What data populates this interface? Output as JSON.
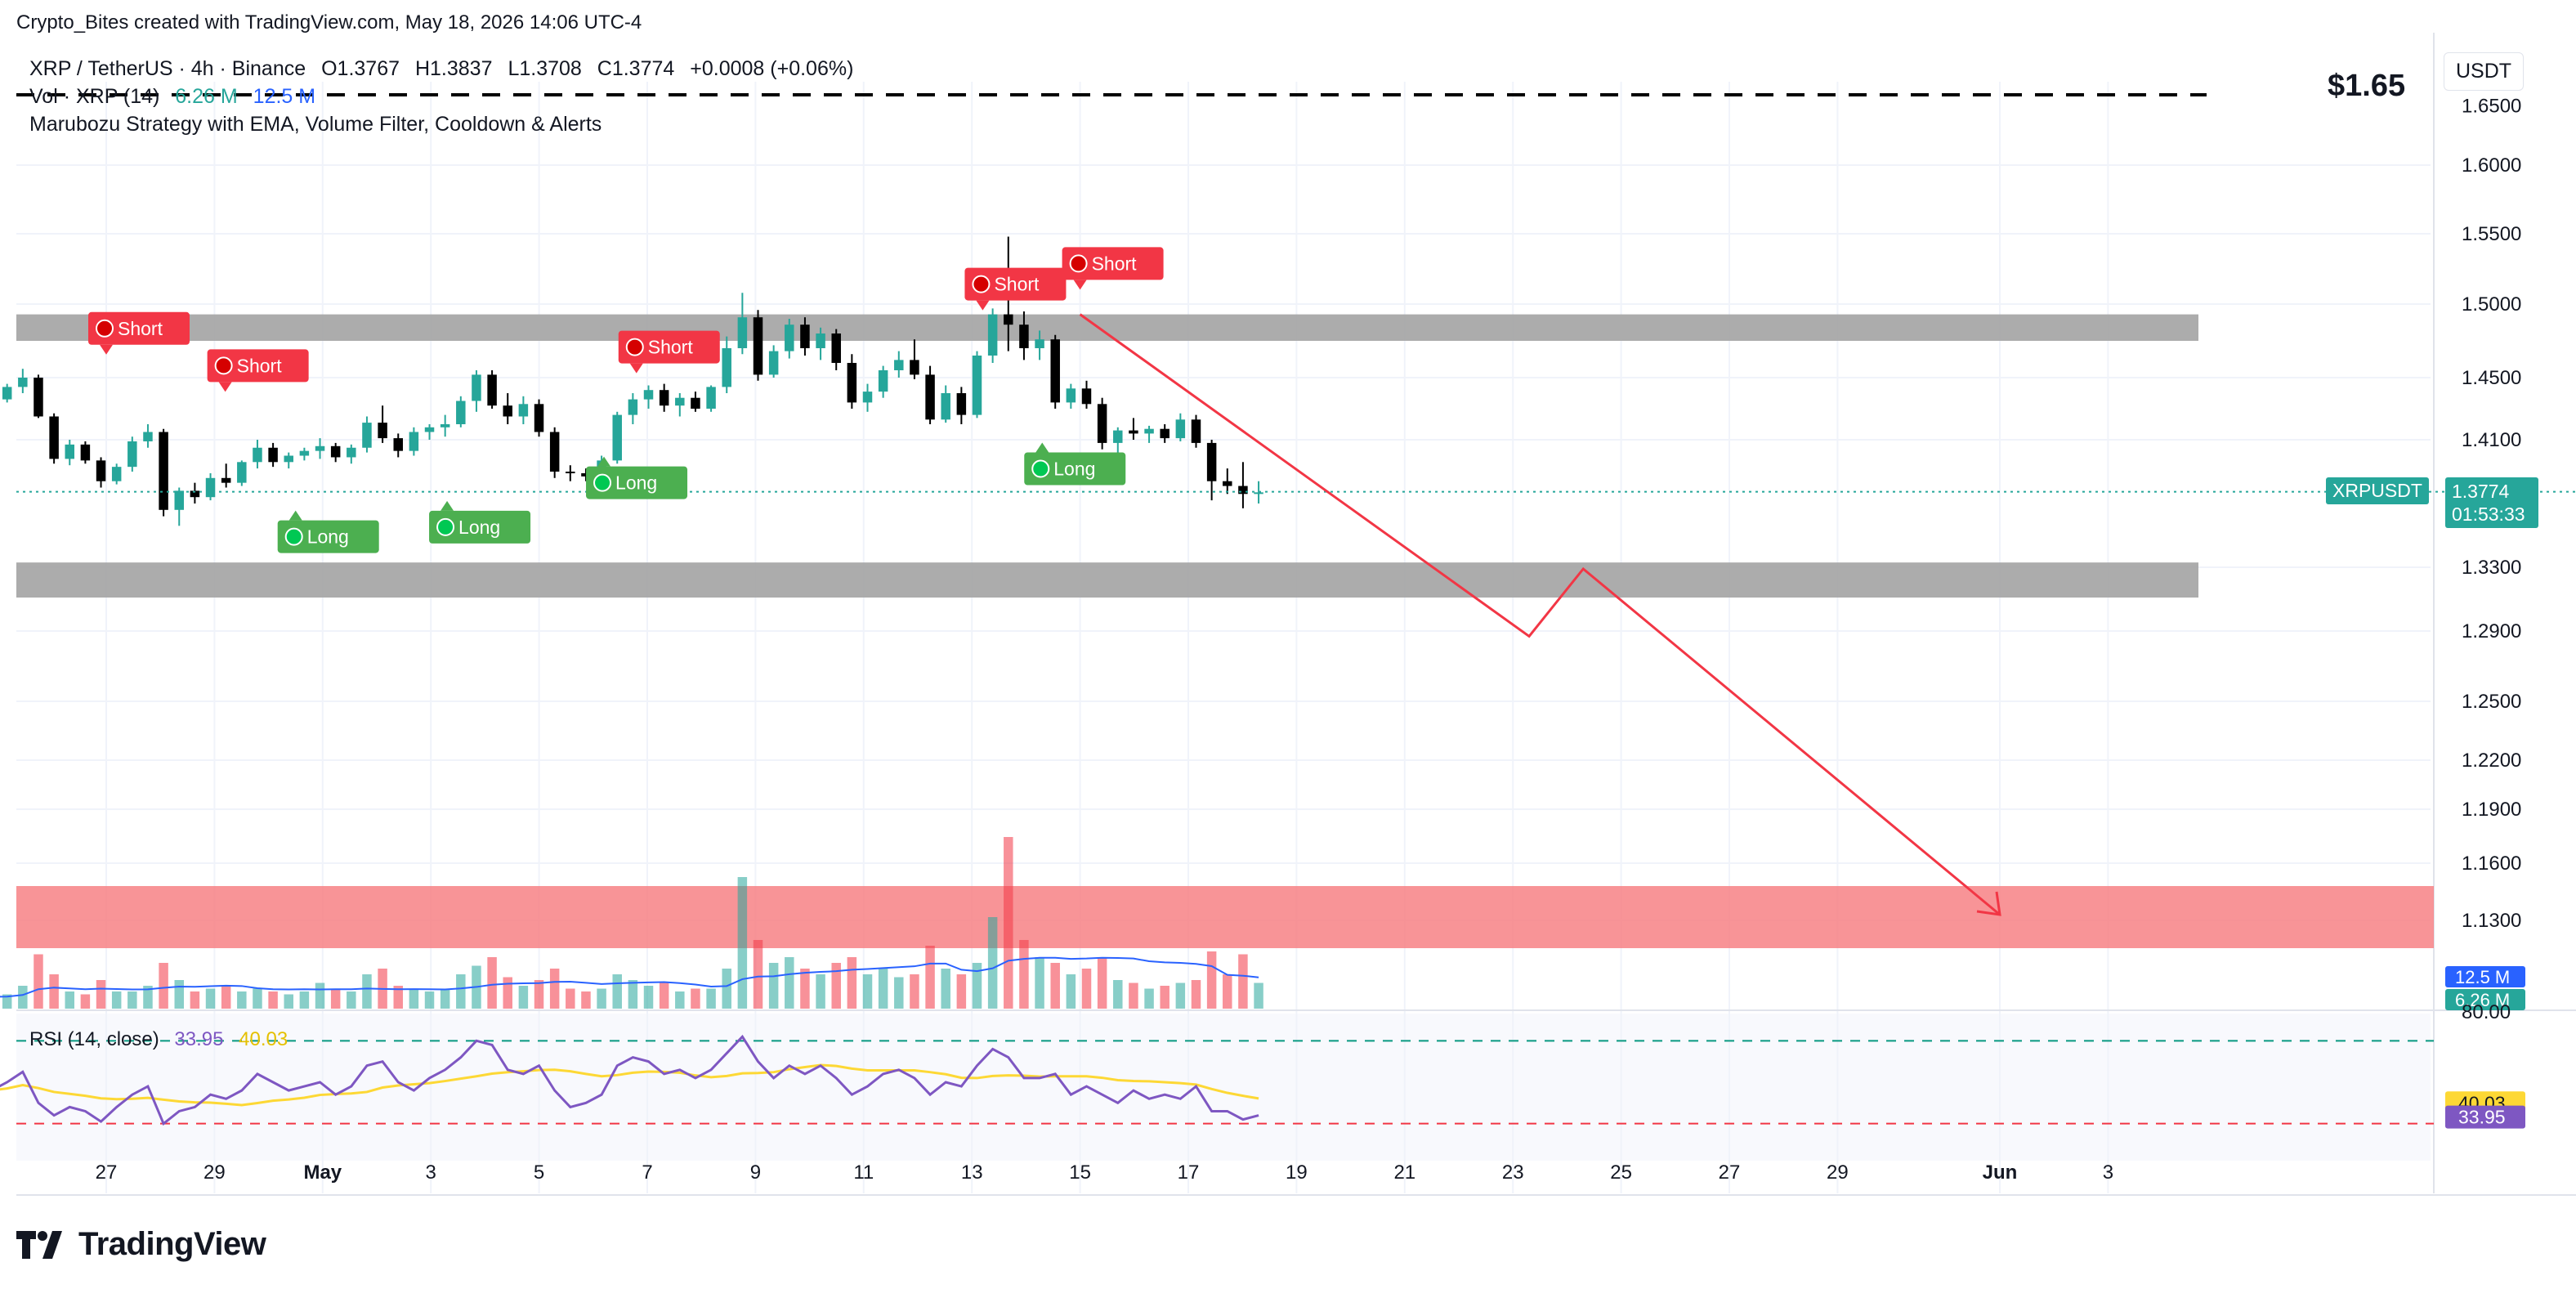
{
  "header": {
    "author_line": "Crypto_Bites created with TradingView.com, May 18, 2026 14:06 UTC-4",
    "symbol_line": "XRP / TetherUS · 4h · Binance",
    "ohlc": {
      "o": "O1.3767",
      "h": "H1.3837",
      "l": "L1.3708",
      "c": "C1.3774",
      "chg": "+0.0008 (+0.06%)"
    },
    "vol_label": "Vol · XRP (14)",
    "vol_value_1": "6.26 M",
    "vol_value_2": "12.5 M",
    "strategy_line": "Marubozu Strategy with EMA, Volume Filter, Cooldown & Alerts"
  },
  "currency_button": "USDT",
  "target_price_label": "$1.65",
  "brand": "TradingView",
  "price_badge": {
    "symbol": "XRPUSDT",
    "price": "1.3774",
    "countdown": "01:53:33"
  },
  "rsi_header": {
    "label": "RSI (14, close)",
    "v1": "33.95",
    "v2": "40.03"
  },
  "colors": {
    "up": "#26a69a",
    "down": "#000000",
    "short": "#f23645",
    "long": "#4caf50",
    "zone_gray": "#a3a3a3",
    "zone_red": "#f77c80",
    "arrow": "#f23645",
    "rsi": "#7e57c2",
    "rsi_ma": "#fdd835",
    "vol_ma": "#2962ff"
  },
  "chart_data": {
    "type": "candlestick",
    "timeframe": "4h",
    "price_axis": {
      "ticks": [
        "1.6000",
        "1.5500",
        "1.5000",
        "1.4500",
        "1.4100",
        "1.3300",
        "1.2900",
        "1.2500",
        "1.2200",
        "1.1900",
        "1.1600",
        "1.1300"
      ],
      "top_partial": "1.6500",
      "ylim": [
        1.11,
        1.66
      ]
    },
    "x_ticks": [
      "27",
      "29",
      "May",
      "3",
      "5",
      "7",
      "9",
      "11",
      "13",
      "15",
      "17",
      "19",
      "21",
      "23",
      "25",
      "27",
      "29",
      "Jun",
      "3"
    ],
    "last_price": 1.3774,
    "zones": [
      {
        "kind": "resistance",
        "from": 1.475,
        "to": 1.493
      },
      {
        "kind": "support",
        "from": 1.311,
        "to": 1.333
      },
      {
        "kind": "target",
        "from": 1.117,
        "to": 1.15
      }
    ],
    "target_line": 1.65,
    "projection": [
      {
        "date": "May 15",
        "price": 1.493
      },
      {
        "date": "May 23.3",
        "price": 1.287
      },
      {
        "date": "May 24.3",
        "price": 1.329
      },
      {
        "date": "Jun 1",
        "price": 1.133
      }
    ],
    "signals": [
      {
        "type": "Short",
        "date": "Apr 27",
        "price": 1.448
      },
      {
        "type": "Short",
        "date": "Apr 29.2",
        "price": 1.424
      },
      {
        "type": "Long",
        "date": "Apr 30.5",
        "price": 1.382
      },
      {
        "type": "Long",
        "date": "May 3.3",
        "price": 1.388
      },
      {
        "type": "Long",
        "date": "May 6.2",
        "price": 1.416
      },
      {
        "type": "Short",
        "date": "May 6.8",
        "price": 1.436
      },
      {
        "type": "Short",
        "date": "May 13.2",
        "price": 1.478
      },
      {
        "type": "Long",
        "date": "May 14.3",
        "price": 1.425
      },
      {
        "type": "Short",
        "date": "May 15",
        "price": 1.492
      }
    ],
    "candles_ohlc": [
      [
        1.438,
        1.441,
        1.432,
        1.435
      ],
      [
        1.435,
        1.44,
        1.43,
        1.437
      ],
      [
        1.437,
        1.442,
        1.433,
        1.436
      ],
      [
        1.436,
        1.446,
        1.434,
        1.444
      ],
      [
        1.444,
        1.456,
        1.44,
        1.45
      ],
      [
        1.45,
        1.452,
        1.424,
        1.425
      ],
      [
        1.425,
        1.427,
        1.395,
        1.398
      ],
      [
        1.398,
        1.41,
        1.394,
        1.407
      ],
      [
        1.407,
        1.409,
        1.395,
        1.397
      ],
      [
        1.397,
        1.399,
        1.38,
        1.384
      ],
      [
        1.384,
        1.395,
        1.382,
        1.393
      ],
      [
        1.393,
        1.412,
        1.39,
        1.409
      ],
      [
        1.409,
        1.42,
        1.405,
        1.415
      ],
      [
        1.415,
        1.417,
        1.362,
        1.366
      ],
      [
        1.366,
        1.38,
        1.356,
        1.378
      ],
      [
        1.378,
        1.383,
        1.37,
        1.374
      ],
      [
        1.374,
        1.389,
        1.372,
        1.386
      ],
      [
        1.386,
        1.395,
        1.38,
        1.383
      ],
      [
        1.383,
        1.397,
        1.381,
        1.396
      ],
      [
        1.396,
        1.41,
        1.392,
        1.405
      ],
      [
        1.405,
        1.408,
        1.393,
        1.396
      ],
      [
        1.396,
        1.402,
        1.392,
        1.4
      ],
      [
        1.4,
        1.405,
        1.397,
        1.403
      ],
      [
        1.403,
        1.411,
        1.398,
        1.406
      ],
      [
        1.406,
        1.408,
        1.396,
        1.399
      ],
      [
        1.399,
        1.407,
        1.395,
        1.405
      ],
      [
        1.405,
        1.425,
        1.402,
        1.421
      ],
      [
        1.421,
        1.432,
        1.408,
        1.411
      ],
      [
        1.411,
        1.414,
        1.399,
        1.403
      ],
      [
        1.403,
        1.418,
        1.4,
        1.415
      ],
      [
        1.415,
        1.42,
        1.41,
        1.418
      ],
      [
        1.418,
        1.426,
        1.412,
        1.42
      ],
      [
        1.42,
        1.438,
        1.418,
        1.435
      ],
      [
        1.435,
        1.455,
        1.428,
        1.452
      ],
      [
        1.452,
        1.455,
        1.43,
        1.432
      ],
      [
        1.432,
        1.44,
        1.42,
        1.425
      ],
      [
        1.425,
        1.438,
        1.42,
        1.433
      ],
      [
        1.433,
        1.436,
        1.412,
        1.415
      ],
      [
        1.415,
        1.418,
        1.386,
        1.39
      ],
      [
        1.39,
        1.394,
        1.384,
        1.389
      ],
      [
        1.389,
        1.392,
        1.384,
        1.387
      ],
      [
        1.387,
        1.4,
        1.385,
        1.397
      ],
      [
        1.397,
        1.428,
        1.395,
        1.426
      ],
      [
        1.426,
        1.44,
        1.42,
        1.436
      ],
      [
        1.436,
        1.445,
        1.43,
        1.442
      ],
      [
        1.442,
        1.446,
        1.428,
        1.432
      ],
      [
        1.432,
        1.44,
        1.425,
        1.437
      ],
      [
        1.437,
        1.441,
        1.428,
        1.43
      ],
      [
        1.43,
        1.445,
        1.428,
        1.444
      ],
      [
        1.444,
        1.478,
        1.44,
        1.47
      ],
      [
        1.47,
        1.508,
        1.466,
        1.491
      ],
      [
        1.491,
        1.496,
        1.448,
        1.452
      ],
      [
        1.452,
        1.472,
        1.45,
        1.468
      ],
      [
        1.468,
        1.49,
        1.463,
        1.486
      ],
      [
        1.486,
        1.491,
        1.465,
        1.47
      ],
      [
        1.47,
        1.484,
        1.462,
        1.48
      ],
      [
        1.48,
        1.483,
        1.455,
        1.46
      ],
      [
        1.46,
        1.466,
        1.43,
        1.434
      ],
      [
        1.434,
        1.446,
        1.428,
        1.441
      ],
      [
        1.441,
        1.458,
        1.437,
        1.455
      ],
      [
        1.455,
        1.468,
        1.45,
        1.462
      ],
      [
        1.462,
        1.476,
        1.449,
        1.452
      ],
      [
        1.452,
        1.458,
        1.42,
        1.423
      ],
      [
        1.423,
        1.445,
        1.421,
        1.44
      ],
      [
        1.44,
        1.444,
        1.42,
        1.426
      ],
      [
        1.426,
        1.468,
        1.424,
        1.465
      ],
      [
        1.465,
        1.497,
        1.46,
        1.493
      ],
      [
        1.493,
        1.548,
        1.468,
        1.486
      ],
      [
        1.486,
        1.495,
        1.462,
        1.47
      ],
      [
        1.47,
        1.482,
        1.462,
        1.476
      ],
      [
        1.476,
        1.479,
        1.43,
        1.434
      ],
      [
        1.434,
        1.446,
        1.43,
        1.443
      ],
      [
        1.443,
        1.448,
        1.43,
        1.433
      ],
      [
        1.433,
        1.437,
        1.404,
        1.408
      ],
      [
        1.408,
        1.418,
        1.402,
        1.416
      ],
      [
        1.416,
        1.424,
        1.41,
        1.414
      ],
      [
        1.414,
        1.419,
        1.408,
        1.417
      ],
      [
        1.417,
        1.42,
        1.408,
        1.411
      ],
      [
        1.411,
        1.427,
        1.409,
        1.423
      ],
      [
        1.423,
        1.426,
        1.405,
        1.408
      ],
      [
        1.408,
        1.41,
        1.372,
        1.384
      ],
      [
        1.384,
        1.392,
        1.376,
        1.381
      ],
      [
        1.381,
        1.396,
        1.367,
        1.376
      ],
      [
        1.376,
        1.384,
        1.37,
        1.377
      ]
    ],
    "volume_ma_hint": "12.5M",
    "rsi": {
      "overbought": 70,
      "oversold": 30,
      "axis_top": "80.00",
      "current": 33.95,
      "ma": 40.03
    }
  }
}
